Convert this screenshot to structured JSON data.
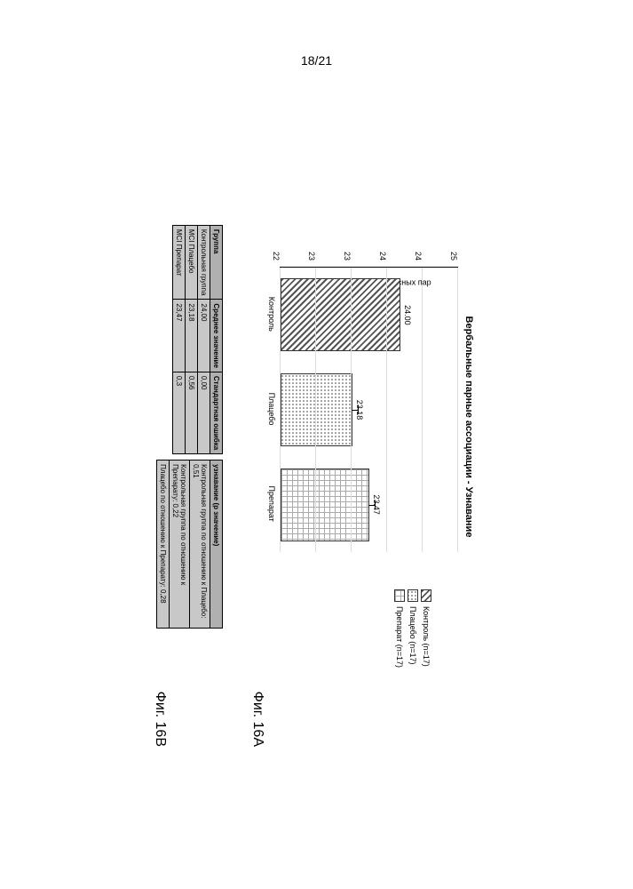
{
  "page_number": "18/21",
  "figA_label": "Фиг. 16A",
  "figB_label": "Фиг. 16B",
  "chart": {
    "type": "bar",
    "title": "Вербальные парные ассоциации - Узнавание",
    "y_axis_label": "Количество узнанных словесных пар",
    "ylim": [
      22,
      25
    ],
    "yticks": [
      "22",
      "23",
      "23",
      "24",
      "24",
      "25"
    ],
    "categories": [
      "Контроль",
      "Плацебо",
      "Препарат"
    ],
    "values": [
      24.0,
      23.18,
      23.47
    ],
    "value_labels": [
      "24.00",
      "23.18",
      "23.47"
    ],
    "errors": [
      0.0,
      0.56,
      0.3
    ],
    "grid_color": "#dddddd",
    "background_color": "#ffffff"
  },
  "legend": {
    "items": [
      {
        "label": "Контроль (n=17)"
      },
      {
        "label": "Плацебо (n=17)"
      },
      {
        "label": "Препарат (n=17)"
      }
    ]
  },
  "tableA": {
    "headers": [
      "Группа",
      "Среднее значение",
      "Стандартная ошибка"
    ],
    "rows": [
      [
        "Контрольная группа",
        "24,00",
        "0,00"
      ],
      [
        "MCI Плацебо",
        "23,18",
        "0,56"
      ],
      [
        "MCI Препарат",
        "23,47",
        "0,3"
      ]
    ]
  },
  "tableB": {
    "title": "узнавание (p значение)",
    "rows": [
      [
        "Контрольная группа по отношению к Плацебо: 0,51"
      ],
      [
        "Контрольная группа по отношению к Препарату: 0,22"
      ],
      [
        "Плацебо по отношению к Препарату: 0,28"
      ]
    ]
  }
}
